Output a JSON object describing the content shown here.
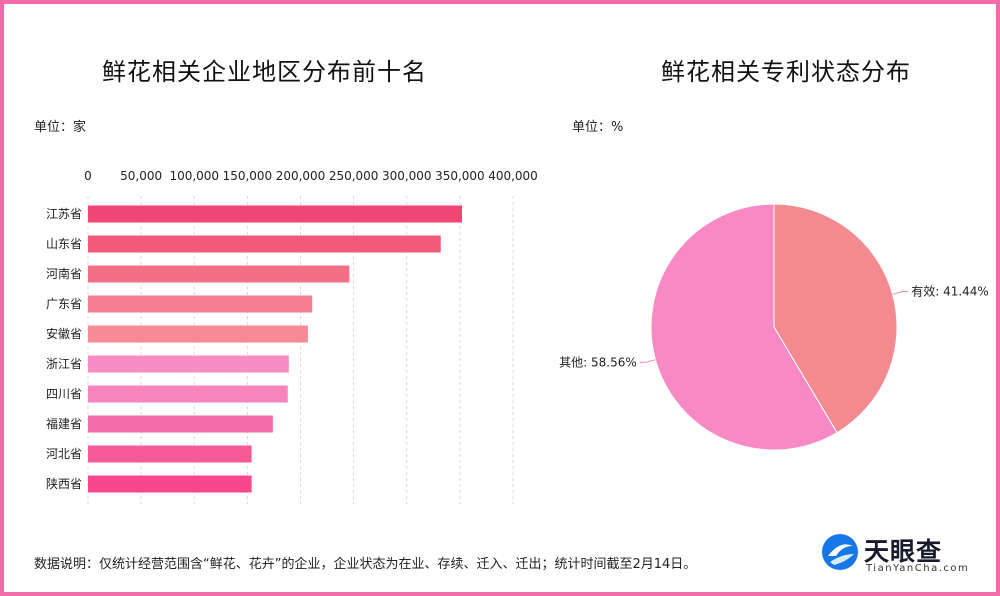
{
  "footnote": "数据说明：仅统计经营范围含“鲜花、花卉”的企业，企业状态为在业、存续、迁入、迁出；统计时间截至2月14日。",
  "logo": {
    "text": "天眼查",
    "sub": "TianYanCha.com"
  },
  "chart_data": [
    {
      "type": "bar",
      "orientation": "horizontal",
      "title": "鲜花相关企业地区分布前十名",
      "unit_label": "单位：家",
      "categories": [
        "江苏省",
        "山东省",
        "河南省",
        "广东省",
        "安徽省",
        "浙江省",
        "四川省",
        "福建省",
        "河北省",
        "陕西省"
      ],
      "values": [
        352000,
        332000,
        246000,
        211000,
        207000,
        189000,
        188000,
        174000,
        154000,
        154000
      ],
      "xlim": [
        0,
        400000
      ],
      "ticks": [
        0,
        50000,
        100000,
        150000,
        200000,
        250000,
        300000,
        350000,
        400000
      ],
      "tick_labels": [
        "0",
        "50,000",
        "100,000",
        "150,000",
        "200,000",
        "250,000",
        "300,000",
        "350,000",
        "400,000"
      ],
      "grid": true,
      "colors": [
        "#ef4674",
        "#f25a7a",
        "#f26f86",
        "#f57f92",
        "#f68a96",
        "#f88cc4",
        "#f784bd",
        "#f56da8",
        "#f85a99",
        "#f8478d"
      ]
    },
    {
      "type": "pie",
      "title": "鲜花相关专利状态分布",
      "unit_label": "单位：%",
      "slices": [
        {
          "label": "有效",
          "value": 41.44,
          "text": "有效: 41.44%",
          "color": "#f28a8f"
        },
        {
          "label": "其他",
          "value": 58.56,
          "text": "其他: 58.56%",
          "color": "#f78ac4"
        }
      ]
    }
  ]
}
